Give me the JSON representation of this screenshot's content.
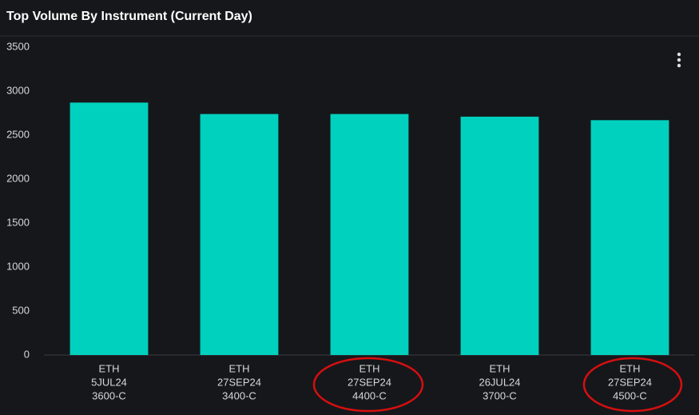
{
  "chart_data": {
    "type": "bar",
    "title": "Top Volume By Instrument (Current Day)",
    "categories": [
      [
        "ETH",
        "5JUL24",
        "3600-C"
      ],
      [
        "ETH",
        "27SEP24",
        "3400-C"
      ],
      [
        "ETH",
        "27SEP24",
        "4400-C"
      ],
      [
        "ETH",
        "26JUL24",
        "3700-C"
      ],
      [
        "ETH",
        "27SEP24",
        "4500-C"
      ]
    ],
    "values": [
      2870,
      2740,
      2740,
      2710,
      2670
    ],
    "color": "#00d1be",
    "ylim": [
      0,
      3500
    ],
    "yticks": [
      0,
      500,
      1000,
      1500,
      2000,
      2500,
      3000,
      3500
    ],
    "grid": false
  }
}
